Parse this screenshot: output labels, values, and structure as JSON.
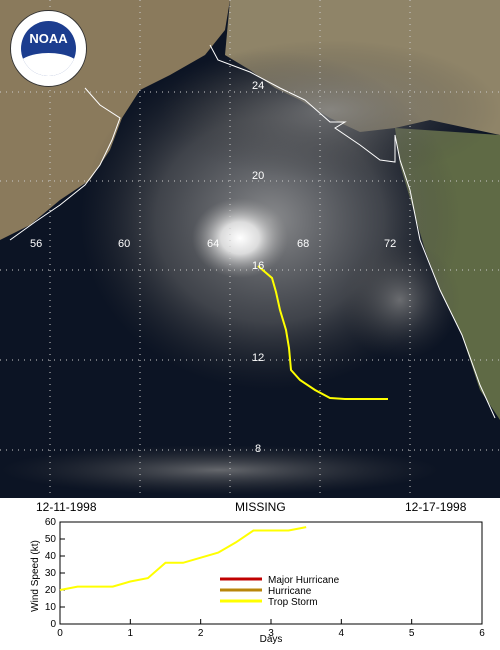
{
  "map": {
    "logo_text": "NOAA",
    "logo_ring_text": "NATIONAL OCEANIC AND ATMOSPHERIC ADMINISTRATION U.S. DEPARTMENT OF COMMERCE",
    "lon_labels": [
      "56",
      "60",
      "64",
      "68",
      "72"
    ],
    "lat_labels": [
      "24",
      "20",
      "16",
      "12",
      "8"
    ],
    "track_color": "#ffff00",
    "coast_color": "#ffffff"
  },
  "header": {
    "start_date": "12-11-1998",
    "storm_name": "MISSING",
    "end_date": "12-17-1998"
  },
  "chart_data": {
    "type": "line",
    "xlabel": "Days",
    "ylabel": "Wind Speed (kt)",
    "xlim": [
      0,
      6
    ],
    "ylim": [
      0,
      60
    ],
    "xticks": [
      0,
      1,
      2,
      3,
      4,
      5,
      6
    ],
    "yticks": [
      0,
      10,
      20,
      30,
      40,
      50,
      60
    ],
    "x": [
      0,
      0.25,
      0.5,
      0.75,
      1.0,
      1.25,
      1.5,
      1.75,
      2.0,
      2.25,
      2.5,
      2.75,
      3.0,
      3.25,
      3.5
    ],
    "y": [
      20,
      22,
      22,
      22,
      25,
      27,
      36,
      36,
      39,
      42,
      48,
      55,
      55,
      55,
      57
    ],
    "line_color": "#ffff00",
    "legend": [
      {
        "label": "Major Hurricane",
        "color": "#c00000"
      },
      {
        "label": "Hurricane",
        "color": "#b8860b"
      },
      {
        "label": "Trop Storm",
        "color": "#ffff00"
      }
    ]
  }
}
